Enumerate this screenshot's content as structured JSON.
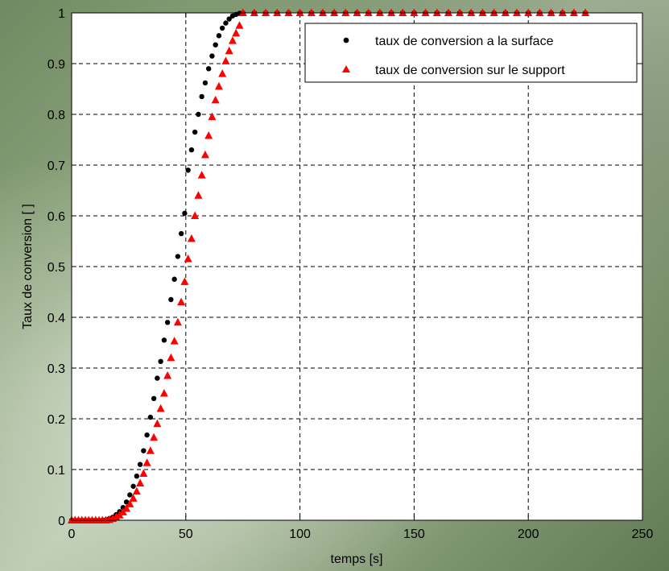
{
  "chart_data": {
    "type": "scatter",
    "xlabel": "temps [s]",
    "ylabel": "Taux de conversion [ ]",
    "xlim": [
      0,
      250
    ],
    "ylim": [
      0,
      1
    ],
    "xticks": [
      "0",
      "50",
      "100",
      "150",
      "200",
      "250"
    ],
    "yticks": [
      "0",
      "0.1",
      "0.2",
      "0.3",
      "0.4",
      "0.5",
      "0.6",
      "0.7",
      "0.8",
      "0.9",
      "1"
    ],
    "grid": true,
    "legend_position": "top-right",
    "series": [
      {
        "name": "taux de conversion a la surface",
        "marker": "circle",
        "color": "#000000",
        "x": [
          0,
          1.5,
          3,
          4.5,
          6,
          7.5,
          9,
          10.5,
          12,
          13.5,
          15,
          16.5,
          18,
          19.5,
          21,
          22.5,
          24,
          25.5,
          27,
          28.5,
          30,
          31.5,
          33,
          34.5,
          36,
          37.5,
          39,
          40.5,
          42,
          43.5,
          45,
          46.5,
          48,
          49.5,
          51,
          52.5,
          54,
          55.5,
          57,
          58.5,
          60,
          61.5,
          63,
          64.5,
          66,
          67.5,
          69,
          70.5,
          72,
          73.5,
          75,
          80,
          85,
          90,
          95,
          100,
          105,
          110,
          115,
          120,
          125,
          130,
          135,
          140,
          145,
          150,
          155,
          160,
          165,
          170,
          175,
          180,
          185,
          190,
          195,
          200,
          205,
          210,
          215,
          220,
          225
        ],
        "y": [
          0,
          0,
          0,
          0,
          0,
          0,
          0,
          0,
          0,
          0,
          0.001,
          0.003,
          0.006,
          0.011,
          0.017,
          0.025,
          0.036,
          0.05,
          0.067,
          0.087,
          0.11,
          0.137,
          0.168,
          0.203,
          0.24,
          0.28,
          0.313,
          0.355,
          0.39,
          0.435,
          0.475,
          0.52,
          0.565,
          0.605,
          0.69,
          0.73,
          0.765,
          0.8,
          0.835,
          0.862,
          0.89,
          0.915,
          0.937,
          0.955,
          0.97,
          0.98,
          0.988,
          0.994,
          0.997,
          0.999,
          1,
          1,
          1,
          1,
          1,
          1,
          1,
          1,
          1,
          1,
          1,
          1,
          1,
          1,
          1,
          1,
          1,
          1,
          1,
          1,
          1,
          1,
          1,
          1,
          1,
          1,
          1,
          1,
          1,
          1,
          1
        ]
      },
      {
        "name": "taux de conversion sur le support",
        "marker": "triangle",
        "color": "#ff0000",
        "x": [
          0,
          1.5,
          3,
          4.5,
          6,
          7.5,
          9,
          10.5,
          12,
          13.5,
          15,
          16.5,
          18,
          19.5,
          21,
          22.5,
          24,
          25.5,
          27,
          28.5,
          30,
          31.5,
          33,
          34.5,
          36,
          37.5,
          39,
          40.5,
          42,
          43.5,
          45,
          46.5,
          48,
          49.5,
          51,
          52.5,
          54,
          55.5,
          57,
          58.5,
          60,
          61.5,
          63,
          64.5,
          66,
          67.5,
          69,
          70.5,
          72,
          73.5,
          75,
          80,
          85,
          90,
          95,
          100,
          105,
          110,
          115,
          120,
          125,
          130,
          135,
          140,
          145,
          150,
          155,
          160,
          165,
          170,
          175,
          180,
          185,
          190,
          195,
          200,
          205,
          210,
          215,
          220,
          225
        ],
        "y": [
          0,
          0,
          0,
          0,
          0,
          0,
          0,
          0,
          0,
          0,
          0,
          0.001,
          0.003,
          0.006,
          0.01,
          0.016,
          0.023,
          0.032,
          0.043,
          0.057,
          0.073,
          0.092,
          0.113,
          0.137,
          0.163,
          0.19,
          0.22,
          0.25,
          0.285,
          0.32,
          0.353,
          0.39,
          0.43,
          0.47,
          0.515,
          0.555,
          0.6,
          0.64,
          0.68,
          0.72,
          0.758,
          0.795,
          0.828,
          0.855,
          0.88,
          0.905,
          0.925,
          0.945,
          0.96,
          0.975,
          1,
          1,
          1,
          1,
          1,
          1,
          1,
          1,
          1,
          1,
          1,
          1,
          1,
          1,
          1,
          1,
          1,
          1,
          1,
          1,
          1,
          1,
          1,
          1,
          1,
          1,
          1,
          1,
          1,
          1,
          1
        ]
      }
    ]
  }
}
